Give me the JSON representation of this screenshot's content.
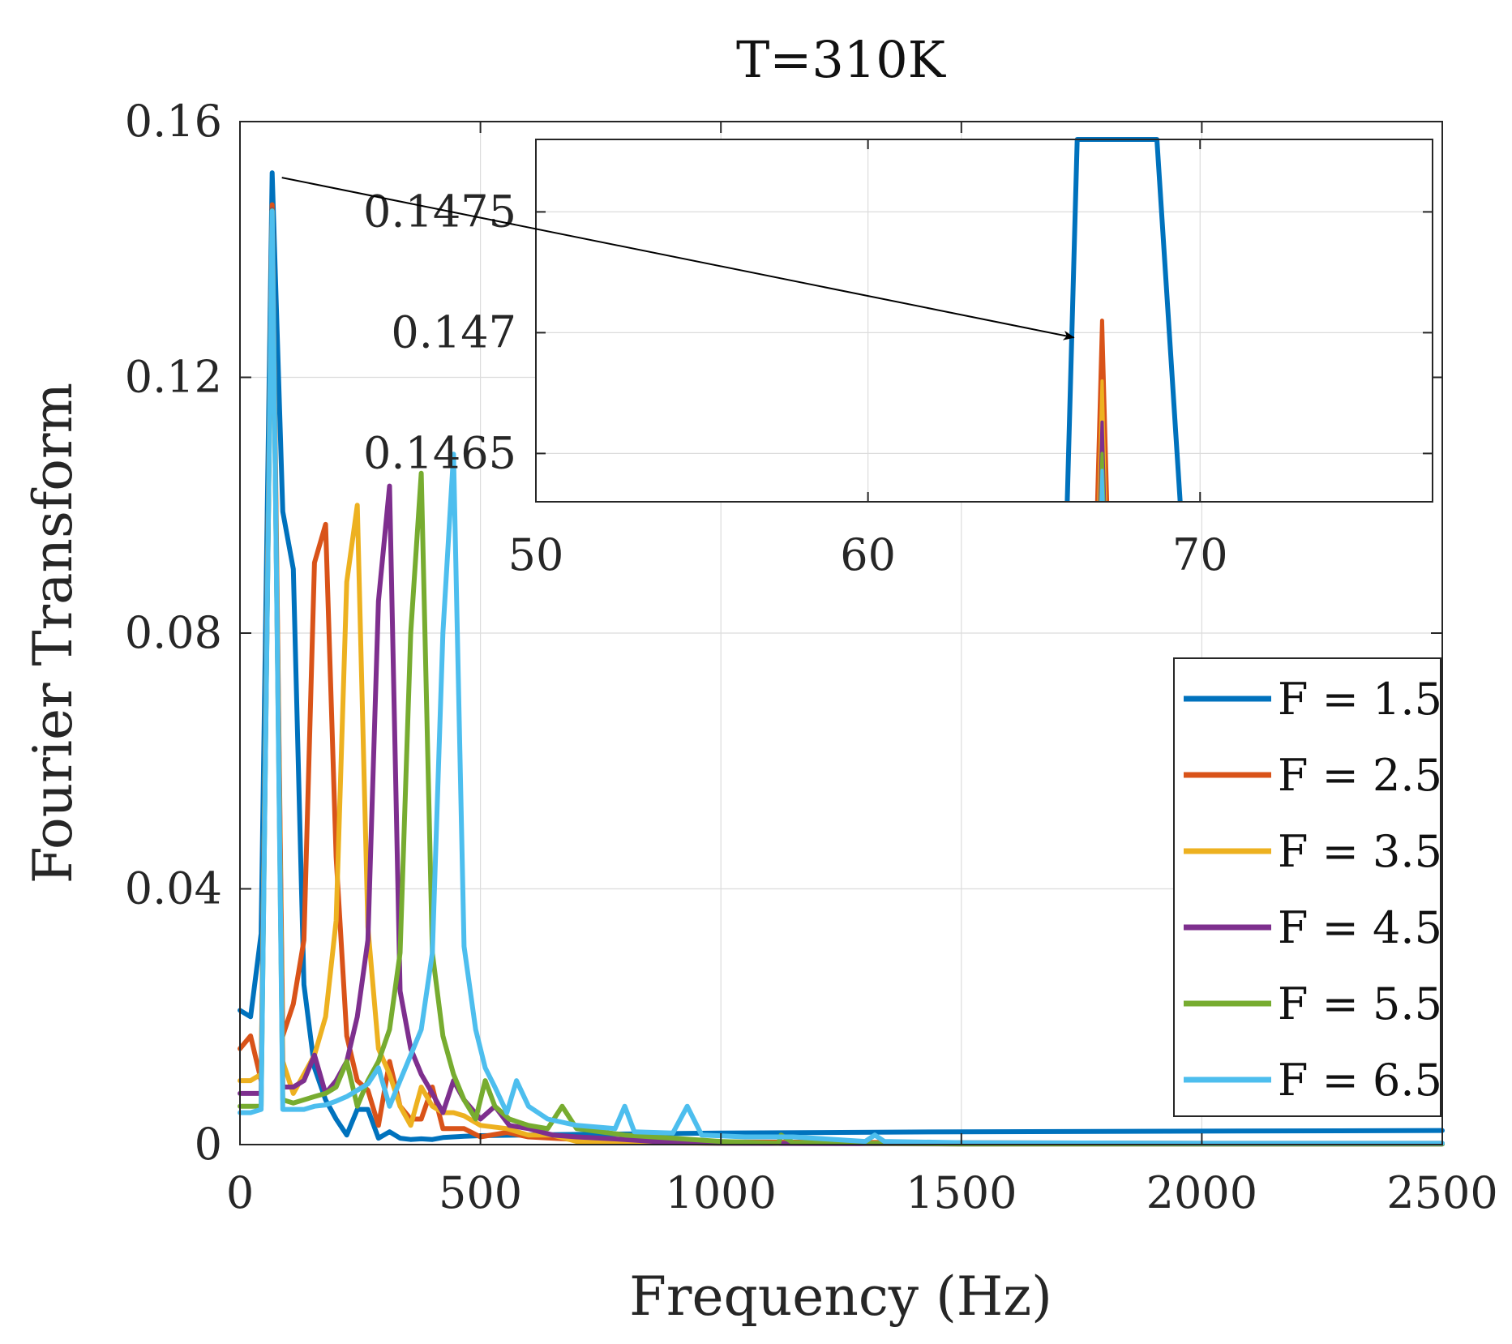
{
  "chart_data": {
    "type": "line",
    "title": "T=310K",
    "xlabel": "Frequency (Hz)",
    "ylabel": "Fourier Transform",
    "xlim": [
      0,
      2500
    ],
    "ylim": [
      0,
      0.16
    ],
    "xticks": [
      "0",
      "500",
      "1000",
      "1500",
      "2000",
      "2500"
    ],
    "yticks": [
      "0",
      "0.04",
      "0.08",
      "0.12",
      "0.16"
    ],
    "grid": true,
    "legend_position": "right",
    "series": [
      {
        "name": "F = 1.5",
        "color": "#0072BD",
        "points": [
          [
            0,
            0.021
          ],
          [
            22,
            0.02
          ],
          [
            44,
            0.033
          ],
          [
            67,
            0.152
          ],
          [
            89,
            0.099
          ],
          [
            111,
            0.09
          ],
          [
            133,
            0.025
          ],
          [
            155,
            0.012
          ],
          [
            178,
            0.007
          ],
          [
            200,
            0.004
          ],
          [
            222,
            0.0015
          ],
          [
            244,
            0.0055
          ],
          [
            266,
            0.0055
          ],
          [
            288,
            0.001
          ],
          [
            311,
            0.002
          ],
          [
            333,
            0.001
          ],
          [
            355,
            0.0008
          ],
          [
            377,
            0.0009
          ],
          [
            400,
            0.0008
          ],
          [
            422,
            0.0011
          ],
          [
            444,
            0.0012
          ],
          [
            466,
            0.0013
          ],
          [
            500,
            0.0014
          ],
          [
            700,
            0.0016
          ],
          [
            1000,
            0.0018
          ],
          [
            1500,
            0.002
          ],
          [
            2000,
            0.0021
          ],
          [
            2500,
            0.0022
          ]
        ]
      },
      {
        "name": "F = 2.5",
        "color": "#D95319",
        "points": [
          [
            0,
            0.015
          ],
          [
            22,
            0.017
          ],
          [
            44,
            0.01
          ],
          [
            67,
            0.147
          ],
          [
            89,
            0.017
          ],
          [
            111,
            0.022
          ],
          [
            133,
            0.032
          ],
          [
            155,
            0.091
          ],
          [
            178,
            0.097
          ],
          [
            200,
            0.045
          ],
          [
            222,
            0.017
          ],
          [
            244,
            0.01
          ],
          [
            266,
            0.0085
          ],
          [
            288,
            0.003
          ],
          [
            311,
            0.013
          ],
          [
            333,
            0.006
          ],
          [
            355,
            0.004
          ],
          [
            377,
            0.004
          ],
          [
            400,
            0.009
          ],
          [
            422,
            0.0025
          ],
          [
            444,
            0.0025
          ],
          [
            466,
            0.0025
          ],
          [
            500,
            0.0012
          ],
          [
            555,
            0.0019
          ],
          [
            600,
            0.0012
          ],
          [
            650,
            0.001
          ],
          [
            700,
            0.0008
          ],
          [
            800,
            0.0007
          ],
          [
            1000,
            0.0004
          ],
          [
            1500,
            0.0003
          ],
          [
            2000,
            0.0002
          ],
          [
            2500,
            0.0002
          ]
        ]
      },
      {
        "name": "F = 3.5",
        "color": "#EDB120",
        "points": [
          [
            0,
            0.01
          ],
          [
            22,
            0.01
          ],
          [
            44,
            0.011
          ],
          [
            67,
            0.146
          ],
          [
            89,
            0.013
          ],
          [
            111,
            0.008
          ],
          [
            133,
            0.011
          ],
          [
            155,
            0.014
          ],
          [
            178,
            0.02
          ],
          [
            200,
            0.035
          ],
          [
            222,
            0.088
          ],
          [
            244,
            0.1
          ],
          [
            266,
            0.034
          ],
          [
            288,
            0.015
          ],
          [
            311,
            0.011
          ],
          [
            333,
            0.006
          ],
          [
            355,
            0.003
          ],
          [
            377,
            0.009
          ],
          [
            400,
            0.006
          ],
          [
            422,
            0.005
          ],
          [
            444,
            0.005
          ],
          [
            466,
            0.0045
          ],
          [
            500,
            0.003
          ],
          [
            555,
            0.0025
          ],
          [
            600,
            0.0015
          ],
          [
            650,
            0.0015
          ],
          [
            700,
            0.0005
          ],
          [
            800,
            0.0003
          ],
          [
            1000,
            0.0002
          ],
          [
            1500,
            0.0002
          ],
          [
            2000,
            0.0001
          ],
          [
            2500,
            0.0001
          ]
        ]
      },
      {
        "name": "F = 4.5",
        "color": "#7E2F8E",
        "points": [
          [
            0,
            0.008
          ],
          [
            22,
            0.008
          ],
          [
            44,
            0.008
          ],
          [
            67,
            0.1462
          ],
          [
            89,
            0.009
          ],
          [
            111,
            0.009
          ],
          [
            133,
            0.01
          ],
          [
            155,
            0.014
          ],
          [
            178,
            0.008
          ],
          [
            200,
            0.01
          ],
          [
            222,
            0.013
          ],
          [
            244,
            0.02
          ],
          [
            266,
            0.032
          ],
          [
            288,
            0.085
          ],
          [
            311,
            0.103
          ],
          [
            333,
            0.024
          ],
          [
            355,
            0.015
          ],
          [
            377,
            0.011
          ],
          [
            400,
            0.008
          ],
          [
            422,
            0.005
          ],
          [
            444,
            0.01
          ],
          [
            466,
            0.007
          ],
          [
            500,
            0.004
          ],
          [
            530,
            0.006
          ],
          [
            560,
            0.003
          ],
          [
            600,
            0.0025
          ],
          [
            650,
            0.0015
          ],
          [
            700,
            0.0012
          ],
          [
            800,
            0.0008
          ],
          [
            900,
            0.0003
          ],
          [
            1000,
            0.0002
          ],
          [
            1500,
            0.0001
          ],
          [
            2000,
            0.0001
          ],
          [
            2500,
            0.0001
          ]
        ]
      },
      {
        "name": "F = 5.5",
        "color": "#77AC30",
        "points": [
          [
            0,
            0.006
          ],
          [
            22,
            0.006
          ],
          [
            44,
            0.006
          ],
          [
            67,
            0.1461
          ],
          [
            89,
            0.007
          ],
          [
            111,
            0.0065
          ],
          [
            133,
            0.007
          ],
          [
            155,
            0.0075
          ],
          [
            178,
            0.008
          ],
          [
            200,
            0.009
          ],
          [
            222,
            0.013
          ],
          [
            244,
            0.006
          ],
          [
            266,
            0.01
          ],
          [
            288,
            0.013
          ],
          [
            311,
            0.018
          ],
          [
            333,
            0.03
          ],
          [
            355,
            0.08
          ],
          [
            377,
            0.105
          ],
          [
            400,
            0.03
          ],
          [
            422,
            0.017
          ],
          [
            444,
            0.011
          ],
          [
            466,
            0.007
          ],
          [
            490,
            0.004
          ],
          [
            510,
            0.01
          ],
          [
            530,
            0.006
          ],
          [
            560,
            0.004
          ],
          [
            600,
            0.003
          ],
          [
            640,
            0.0025
          ],
          [
            670,
            0.006
          ],
          [
            700,
            0.0025
          ],
          [
            800,
            0.0015
          ],
          [
            900,
            0.001
          ],
          [
            1000,
            0.0005
          ],
          [
            1120,
            0.0002
          ],
          [
            1125,
            0.0015
          ],
          [
            1150,
            0.0003
          ],
          [
            1250,
            0.0004
          ],
          [
            1300,
            0.0002
          ],
          [
            1500,
            0.0001
          ],
          [
            2000,
            0.0001
          ],
          [
            2500,
            0.0001
          ]
        ]
      },
      {
        "name": "F = 6.5",
        "color": "#4DBEEE",
        "points": [
          [
            0,
            0.005
          ],
          [
            22,
            0.005
          ],
          [
            44,
            0.0055
          ],
          [
            67,
            0.146
          ],
          [
            89,
            0.0055
          ],
          [
            111,
            0.0055
          ],
          [
            133,
            0.0055
          ],
          [
            155,
            0.006
          ],
          [
            178,
            0.0062
          ],
          [
            200,
            0.0068
          ],
          [
            222,
            0.0075
          ],
          [
            244,
            0.0085
          ],
          [
            266,
            0.0095
          ],
          [
            288,
            0.012
          ],
          [
            311,
            0.006
          ],
          [
            333,
            0.01
          ],
          [
            355,
            0.014
          ],
          [
            377,
            0.018
          ],
          [
            400,
            0.03
          ],
          [
            422,
            0.08
          ],
          [
            444,
            0.108
          ],
          [
            466,
            0.031
          ],
          [
            490,
            0.018
          ],
          [
            510,
            0.012
          ],
          [
            530,
            0.009
          ],
          [
            555,
            0.005
          ],
          [
            575,
            0.01
          ],
          [
            600,
            0.006
          ],
          [
            640,
            0.004
          ],
          [
            700,
            0.003
          ],
          [
            780,
            0.0025
          ],
          [
            800,
            0.006
          ],
          [
            820,
            0.002
          ],
          [
            900,
            0.0018
          ],
          [
            930,
            0.006
          ],
          [
            960,
            0.0015
          ],
          [
            1050,
            0.0012
          ],
          [
            1150,
            0.0012
          ],
          [
            1300,
            0.0005
          ],
          [
            1320,
            0.0015
          ],
          [
            1340,
            0.0005
          ],
          [
            1500,
            0.0003
          ],
          [
            2000,
            0.0002
          ],
          [
            2500,
            0.0002
          ]
        ]
      }
    ],
    "inset": {
      "xlim": [
        50,
        77
      ],
      "ylim": [
        0.1463,
        0.1478
      ],
      "xticks": [
        "50",
        "60",
        "70"
      ],
      "yticks": [
        "0.1465",
        "0.147",
        "0.1475"
      ],
      "annotation": "arrow from main-plot peak (67, 0.152) to zoomed inset peak",
      "series": [
        {
          "name": "F = 1.5",
          "color": "#0072BD",
          "points": [
            [
              66.0,
              0.1463
            ],
            [
              66.3,
              0.1478
            ],
            [
              68.7,
              0.1478
            ],
            [
              69.4,
              0.1463
            ]
          ]
        },
        {
          "name": "F = 2.5",
          "color": "#D95319",
          "points": [
            [
              66.9,
              0.1463
            ],
            [
              67.05,
              0.14705
            ],
            [
              67.2,
              0.1463
            ]
          ]
        },
        {
          "name": "F = 3.5",
          "color": "#EDB120",
          "points": [
            [
              66.95,
              0.1463
            ],
            [
              67.05,
              0.1468
            ],
            [
              67.15,
              0.1463
            ]
          ]
        },
        {
          "name": "F = 4.5",
          "color": "#7E2F8E",
          "points": [
            [
              66.98,
              0.1463
            ],
            [
              67.05,
              0.14663
            ],
            [
              67.12,
              0.1463
            ]
          ]
        },
        {
          "name": "F = 5.5",
          "color": "#77AC30",
          "points": [
            [
              67.0,
              0.1463
            ],
            [
              67.05,
              0.1465
            ],
            [
              67.1,
              0.1463
            ]
          ]
        },
        {
          "name": "F = 6.5",
          "color": "#4DBEEE",
          "points": [
            [
              67.02,
              0.1463
            ],
            [
              67.05,
              0.14643
            ],
            [
              67.08,
              0.1463
            ]
          ]
        }
      ]
    }
  }
}
